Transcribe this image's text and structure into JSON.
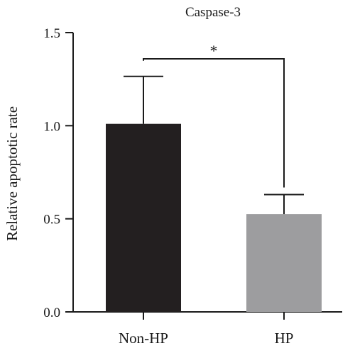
{
  "chart_data": {
    "type": "bar",
    "title": "Caspase-3",
    "xlabel": "",
    "ylabel": "Relative apoptotic rate",
    "ylim": [
      0,
      1.5
    ],
    "yticks": [
      "0.0",
      "0.5",
      "1.0",
      "1.5"
    ],
    "categories": [
      "Non-HP",
      "HP"
    ],
    "values": [
      1.01,
      0.525
    ],
    "errors": [
      0.255,
      0.105
    ],
    "bar_colors": [
      "#231f20",
      "#9d9d9f"
    ],
    "significance": {
      "between": [
        0,
        1
      ],
      "label": "*"
    },
    "grid": false,
    "legend": "none"
  }
}
